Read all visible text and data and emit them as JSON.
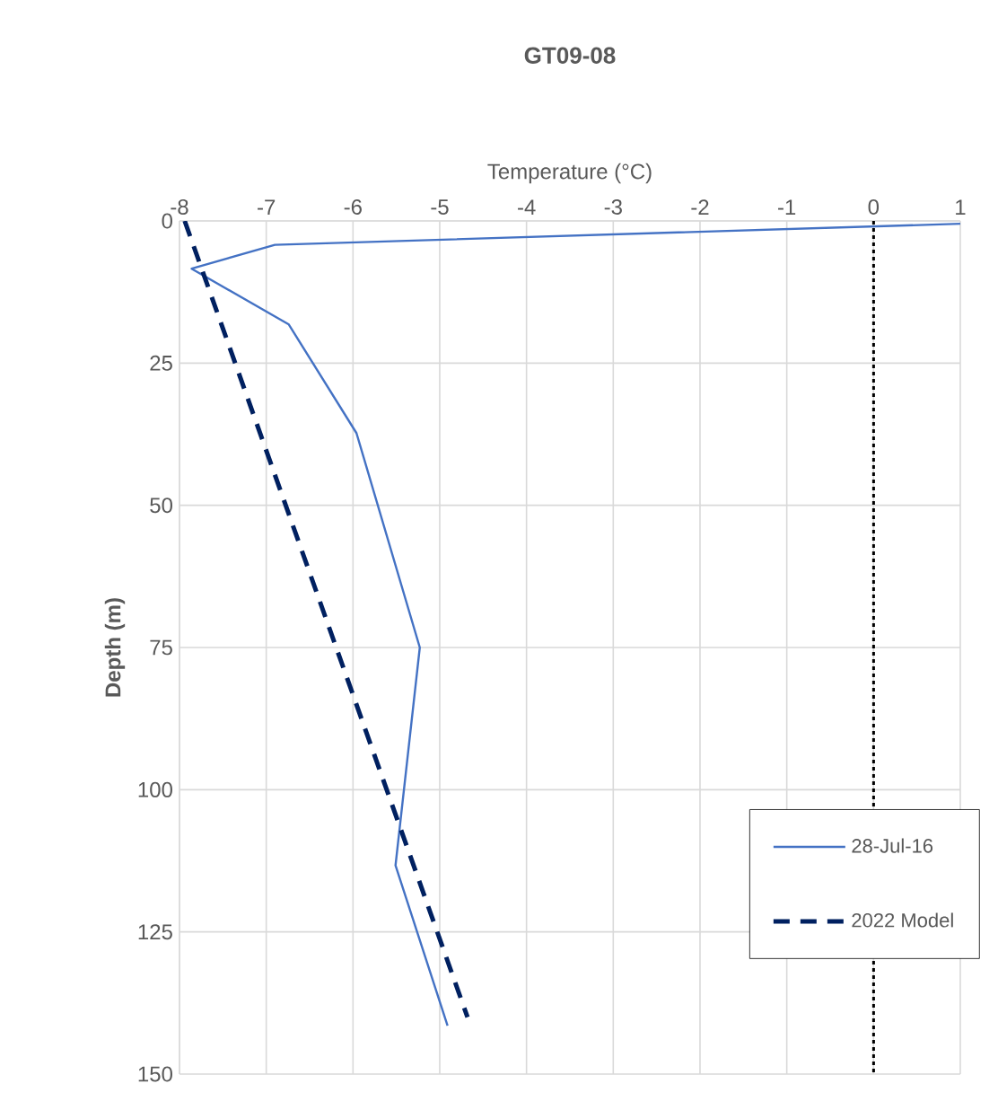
{
  "chart_data": {
    "type": "line",
    "title": "GT09-08",
    "xlabel": "Temperature (°C)",
    "ylabel": "Depth (m)",
    "xlim": [
      -8,
      1
    ],
    "xticks": [
      -8,
      -7,
      -6,
      -5,
      -4,
      -3,
      -2,
      -1,
      0,
      1
    ],
    "ylim": [
      150,
      0
    ],
    "yticks": [
      0,
      25,
      50,
      75,
      100,
      125,
      150
    ],
    "grid": true,
    "legend": "right",
    "series": [
      {
        "name": "28-Jul-16",
        "color": "#4472c4",
        "line_style": "solid",
        "x": [
          1,
          -6.9,
          -7.86,
          -6.74,
          -5.96,
          -5.23,
          -5.51,
          -4.91
        ],
        "values": [
          0.5,
          4.2,
          8.4,
          18.2,
          37.3,
          75,
          113.3,
          141.5
        ]
      },
      {
        "name": "2022 Model",
        "color": "#002060",
        "line_style": "dashed",
        "x": [
          -7.94,
          -4.68
        ],
        "values": [
          0,
          140
        ]
      }
    ],
    "ref_lines": [
      {
        "axis": "x",
        "value": 0,
        "color": "#000000",
        "line_style": "dotted"
      }
    ]
  }
}
